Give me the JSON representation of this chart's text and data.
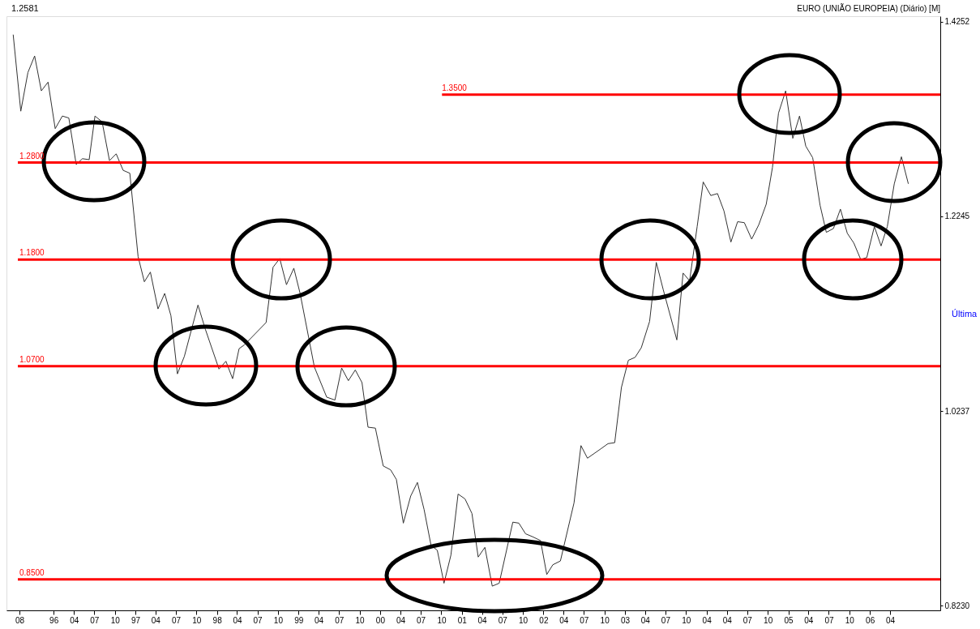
{
  "chart_data": {
    "type": "line",
    "title": "EURO (UNIÃO EUROPEIA) (Diário)  [M]",
    "x": [
      "1995-07-04",
      "1995-08-07",
      "1995-09-08",
      "1995-10-08",
      "1995-11-07",
      "1995-12-07",
      "1996-01-08",
      "1996-02-09",
      "1996-03-09",
      "1996-04-11",
      "1996-05-09",
      "1996-06-08",
      "1996-07-04",
      "1996-08-05",
      "1996-09-07",
      "1996-10-07",
      "1996-11-07",
      "1996-12-07",
      "1997-01-13",
      "1997-02-10",
      "1997-03-09",
      "1997-04-12",
      "1997-05-12",
      "1997-06-09",
      "1997-07-08",
      "1997-08-08",
      "1997-10-08",
      "1997-11-10",
      "1998-01-10",
      "1998-02-10",
      "1998-03-12",
      "1998-04-10",
      "1998-05-04",
      "1998-08-09",
      "1998-09-09",
      "1998-10-09",
      "1998-11-08",
      "1998-12-11",
      "1999-01-08",
      "1999-03-13",
      "1999-05-07",
      "1999-06-13",
      "1999-07-13",
      "1999-08-12",
      "1999-09-12",
      "1999-10-12",
      "1999-11-08",
      "1999-12-11",
      "2000-01-15",
      "2000-02-17",
      "2000-03-14",
      "2000-04-14",
      "2000-05-17",
      "2000-06-16",
      "2000-07-16",
      "2000-08-16",
      "2000-09-13",
      "2000-10-13",
      "2000-11-13",
      "2000-12-15",
      "2001-01-15",
      "2001-02-15",
      "2001-03-15",
      "2001-04-14",
      "2001-05-17",
      "2001-06-17",
      "2001-08-17",
      "2001-09-13",
      "2001-10-13",
      "2001-11-13",
      "2001-12-19",
      "2002-01-16",
      "2002-02-12",
      "2002-03-18",
      "2002-05-18",
      "2002-06-18",
      "2002-07-17",
      "2002-09-17",
      "2002-10-17",
      "2002-11-16",
      "2002-12-16",
      "2003-01-16",
      "2003-02-15",
      "2003-03-15",
      "2003-04-21",
      "2003-05-21",
      "2003-06-21",
      "2003-08-21",
      "2003-09-18",
      "2003-10-17",
      "2003-11-20",
      "2003-12-17",
      "2004-01-20",
      "2004-02-19",
      "2004-03-19",
      "2004-04-19",
      "2004-05-19",
      "2004-06-18",
      "2004-07-21",
      "2004-08-22",
      "2004-09-24",
      "2004-10-22",
      "2004-11-18",
      "2004-12-20",
      "2005-01-21",
      "2005-02-20",
      "2005-03-20",
      "2005-04-20",
      "2005-05-23",
      "2005-06-20",
      "2005-07-22",
      "2005-08-22",
      "2005-09-22",
      "2005-10-21",
      "2005-11-21",
      "2005-12-18",
      "2006-01-21",
      "2006-02-20",
      "2006-03-20",
      "2006-04-20",
      "2006-05-22",
      "2006-06-22"
    ],
    "series": [
      {
        "color": "#333333",
        "values": [
          1.412,
          1.333,
          1.373,
          1.39,
          1.354,
          1.363,
          1.315,
          1.328,
          1.326,
          1.278,
          1.284,
          1.283,
          1.328,
          1.322,
          1.282,
          1.289,
          1.272,
          1.269,
          1.183,
          1.157,
          1.167,
          1.129,
          1.145,
          1.122,
          1.062,
          1.08,
          1.133,
          1.108,
          1.067,
          1.075,
          1.057,
          1.088,
          1.092,
          1.115,
          1.172,
          1.181,
          1.154,
          1.171,
          1.145,
          1.069,
          1.038,
          1.035,
          1.068,
          1.055,
          1.066,
          1.053,
          1.007,
          1.006,
          0.967,
          0.963,
          0.953,
          0.908,
          0.936,
          0.95,
          0.922,
          0.885,
          0.88,
          0.846,
          0.875,
          0.938,
          0.933,
          0.918,
          0.873,
          0.883,
          0.843,
          0.846,
          0.909,
          0.908,
          0.897,
          0.894,
          0.89,
          0.855,
          0.865,
          0.869,
          0.929,
          0.988,
          0.975,
          0.985,
          0.99,
          0.991,
          1.048,
          1.076,
          1.079,
          1.089,
          1.116,
          1.177,
          1.149,
          1.097,
          1.166,
          1.158,
          1.214,
          1.26,
          1.246,
          1.248,
          1.23,
          1.198,
          1.219,
          1.218,
          1.201,
          1.216,
          1.237,
          1.275,
          1.331,
          1.354,
          1.305,
          1.328,
          1.297,
          1.285,
          1.236,
          1.208,
          1.212,
          1.232,
          1.207,
          1.197,
          1.18,
          1.182,
          1.214,
          1.194,
          1.214,
          1.258,
          1.286,
          1.2581
        ]
      },
      {
        "type": "line",
        "color": "#ff0000",
        "x": [
          "2000-10-04",
          "2006-11-12"
        ],
        "values": [
          1.35,
          1.35
        ]
      }
    ],
    "xlim": [
      "1995-06-04",
      "2006-11-12"
    ],
    "xticks": [
      {
        "value": "1995-08-01",
        "label": "08"
      },
      {
        "value": "1996-01-01",
        "label": "96"
      },
      {
        "value": "1996-04-01",
        "label": "04"
      },
      {
        "value": "1996-07-01",
        "label": "07"
      },
      {
        "value": "1996-10-01",
        "label": "10"
      },
      {
        "value": "1997-01-01",
        "label": "97"
      },
      {
        "value": "1997-04-01",
        "label": "04"
      },
      {
        "value": "1997-07-01",
        "label": "07"
      },
      {
        "value": "1997-10-01",
        "label": "10"
      },
      {
        "value": "1998-01-01",
        "label": "98"
      },
      {
        "value": "1998-04-01",
        "label": "04"
      },
      {
        "value": "1998-07-01",
        "label": "07"
      },
      {
        "value": "1998-10-01",
        "label": "10"
      },
      {
        "value": "1999-01-01",
        "label": "99"
      },
      {
        "value": "1999-04-01",
        "label": "04"
      },
      {
        "value": "1999-07-01",
        "label": "07"
      },
      {
        "value": "1999-10-01",
        "label": "10"
      },
      {
        "value": "2000-01-01",
        "label": "00"
      },
      {
        "value": "2000-04-01",
        "label": "04"
      },
      {
        "value": "2000-07-01",
        "label": "07"
      },
      {
        "value": "2000-10-01",
        "label": "10"
      },
      {
        "value": "2001-01-01",
        "label": "01"
      },
      {
        "value": "2001-04-01",
        "label": "04"
      },
      {
        "value": "2001-07-01",
        "label": "07"
      },
      {
        "value": "2001-10-01",
        "label": "10"
      },
      {
        "value": "2002-01-01",
        "label": "02"
      },
      {
        "value": "2002-04-01",
        "label": "04"
      },
      {
        "value": "2002-07-01",
        "label": "07"
      },
      {
        "value": "2002-10-01",
        "label": "10"
      },
      {
        "value": "2003-01-01",
        "label": "03"
      },
      {
        "value": "2003-04-01",
        "label": "04"
      },
      {
        "value": "2003-07-01",
        "label": "07"
      },
      {
        "value": "2003-10-01",
        "label": "10"
      },
      {
        "value": "2004-01-01",
        "label": "04"
      },
      {
        "value": "2004-04-01",
        "label": "04"
      },
      {
        "value": "2004-07-01",
        "label": "07"
      },
      {
        "value": "2004-10-01",
        "label": "10"
      },
      {
        "value": "2005-01-01",
        "label": "05"
      },
      {
        "value": "2005-04-01",
        "label": "04"
      },
      {
        "value": "2005-07-01",
        "label": "07"
      },
      {
        "value": "2005-10-01",
        "label": "10"
      },
      {
        "value": "2006-01-01",
        "label": "06"
      },
      {
        "value": "2006-04-01",
        "label": "04"
      }
    ],
    "ylim": [
      0.818,
      1.431
    ],
    "yticks": [
      1.4252,
      1.2245,
      1.0237,
      {
        "value": 0.823,
        "label": "0.8230"
      }
    ],
    "ref_lines": [
      {
        "axis": "y",
        "value": 1.28,
        "label": "1.2800",
        "color": "#ff0000"
      },
      {
        "axis": "y",
        "value": 1.18,
        "label": "1.1800",
        "color": "#ff0000"
      },
      {
        "axis": "y",
        "value": 1.07,
        "label": "1.0700",
        "color": "#ff0000"
      },
      {
        "axis": "y",
        "value": 0.85,
        "label": "0.8500",
        "color": "#ff0000"
      }
    ],
    "annotations": [
      "1.2581",
      "Última",
      {
        "text": "1.3500",
        "x": "2000-10-04",
        "y": 1.35
      }
    ],
    "grid": false,
    "marker": "none",
    "line_style": "solid"
  }
}
